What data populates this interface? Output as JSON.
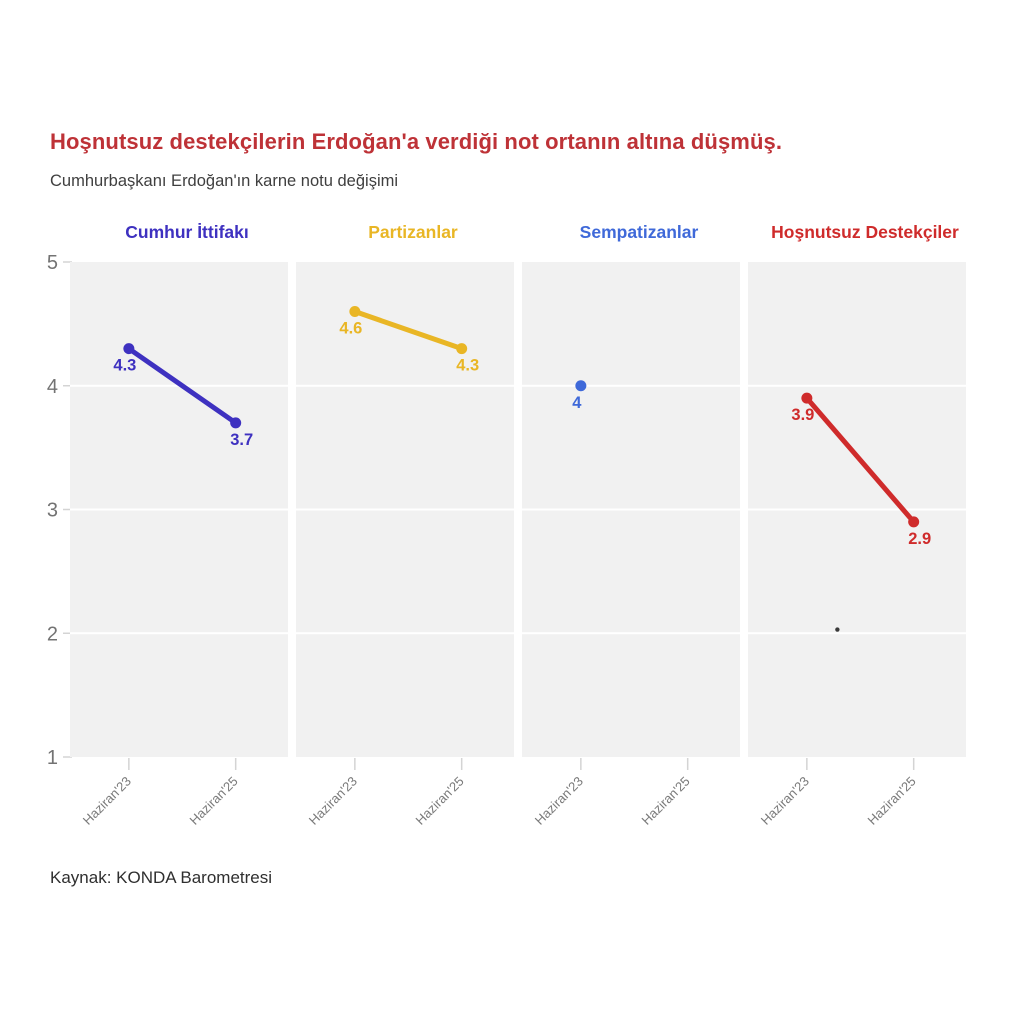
{
  "chart_data": {
    "type": "line",
    "layout": "small_multiples_4_panels_shared_y_axis",
    "title": "Hoşnutsuz destekçilerin Erdoğan'a verdiği not ortanın altına düşmüş.",
    "subtitle": "Cumhurbaşkanı Erdoğan'ın karne notu değişimi",
    "source": "Kaynak: KONDA Barometresi",
    "title_color": "#be3237",
    "x_categories": [
      "Haziran'23",
      "Haziran'25"
    ],
    "ylim": [
      1,
      5
    ],
    "yticks": [
      "5",
      "4",
      "3",
      "2",
      "1"
    ],
    "gridline_values": [
      4,
      3,
      2
    ],
    "grid_on": true,
    "legend_position": "none (colored panel titles act as legend)",
    "panels": [
      {
        "label": "Cumhur İttifakı",
        "color": "#3e31c0",
        "values": [
          4.3,
          3.7
        ],
        "labels": [
          "4.3",
          "3.7"
        ]
      },
      {
        "label": "Partizanlar",
        "color": "#e9b625",
        "values": [
          4.6,
          4.3
        ],
        "labels": [
          "4.6",
          "4.3"
        ]
      },
      {
        "label": "Sempatizanlar",
        "color": "#3f69d9",
        "values": [
          4,
          null
        ],
        "labels": [
          "4",
          null
        ]
      },
      {
        "label": "Hoşnutsuz Destekçiler",
        "color": "#cf2b2b",
        "values": [
          3.9,
          2.9
        ],
        "labels": [
          "3.9",
          "2.9"
        ]
      }
    ],
    "styles": {
      "panel_bg": "#f1f1f1",
      "grid_color": "#ffffff",
      "tick_color": "#d4d4d4",
      "axis_label_color": "#737373",
      "x_label_color": "#7a7a7a",
      "subtitle_color": "#3f3f3f",
      "source_color": "#2f2f2f",
      "background": "#ffffff"
    },
    "annotations": [
      {
        "type": "stray_dot",
        "panel_index": 3,
        "x_frac": 0.41,
        "value": 2.03,
        "color": "#3a3a3a"
      }
    ]
  }
}
